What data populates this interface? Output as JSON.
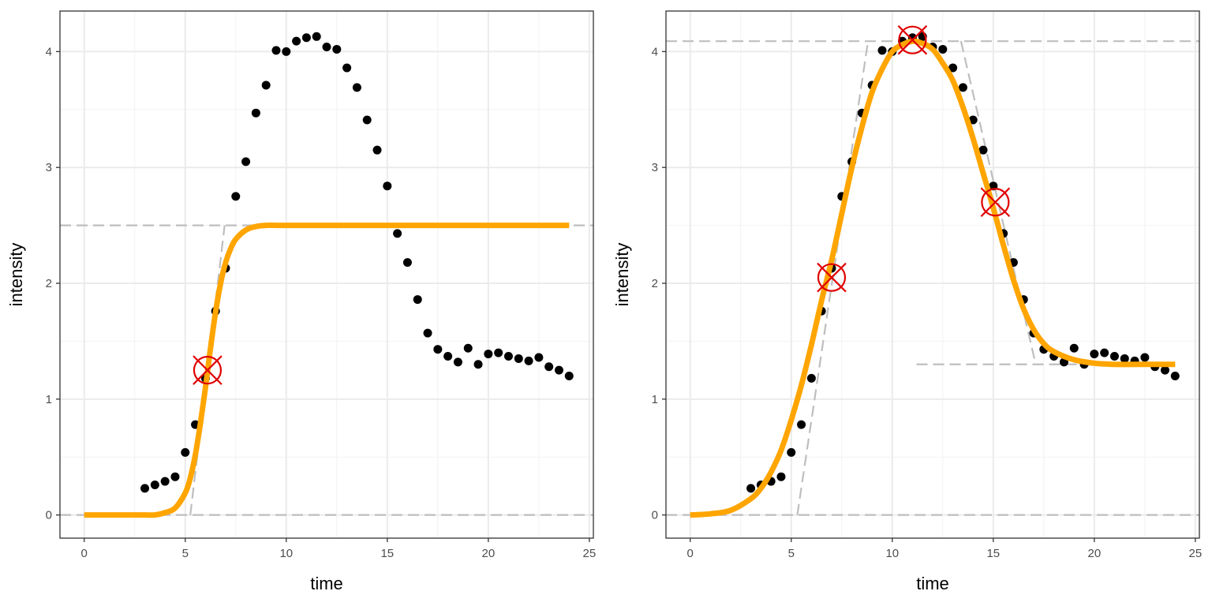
{
  "chart_data": [
    {
      "type": "scatter",
      "panel": "left",
      "xlabel": "time",
      "ylabel": "intensity",
      "xlim": [
        -1.2,
        25.2
      ],
      "ylim": [
        -0.2,
        4.35
      ],
      "xticks": [
        0,
        5,
        10,
        15,
        20,
        25
      ],
      "yticks": [
        0,
        1,
        2,
        3,
        4
      ],
      "grid": true,
      "points": {
        "x": [
          3,
          3.5,
          4,
          4.5,
          5,
          5.5,
          6,
          6.5,
          7,
          7.5,
          8,
          8.5,
          9,
          9.5,
          10,
          10.5,
          11,
          11.5,
          12,
          12.5,
          13,
          13.5,
          14,
          14.5,
          15,
          15.5,
          16,
          16.5,
          17,
          17.5,
          18,
          18.5,
          19,
          19.5,
          20,
          20.5,
          21,
          21.5,
          22,
          22.5,
          23,
          23.5,
          24
        ],
        "y": [
          0.23,
          0.26,
          0.29,
          0.33,
          0.54,
          0.78,
          1.18,
          1.76,
          2.13,
          2.75,
          3.05,
          3.47,
          3.71,
          4.01,
          4.0,
          4.09,
          4.12,
          4.13,
          4.04,
          4.02,
          3.86,
          3.69,
          3.41,
          3.15,
          2.84,
          2.43,
          2.18,
          1.86,
          1.57,
          1.43,
          1.37,
          1.32,
          1.44,
          1.3,
          1.39,
          1.4,
          1.37,
          1.35,
          1.33,
          1.36,
          1.28,
          1.25,
          1.2
        ]
      },
      "fit_curve": {
        "name": "sigmoid fit",
        "color": "#ffa500",
        "x": [
          0,
          0.5,
          1,
          1.5,
          2,
          2.5,
          3,
          3.5,
          4,
          4.5,
          5,
          5.25,
          5.5,
          5.75,
          6,
          6.25,
          6.5,
          6.75,
          7,
          7.25,
          7.5,
          8,
          8.5,
          9,
          9.5,
          10,
          11,
          12,
          14,
          16,
          18,
          20,
          22,
          24
        ],
        "y": [
          0.0,
          0.0,
          0.0,
          0.0,
          0.0,
          0.0,
          0.0,
          0.0,
          0.02,
          0.06,
          0.19,
          0.32,
          0.52,
          0.79,
          1.1,
          1.44,
          1.75,
          2.0,
          2.18,
          2.3,
          2.38,
          2.46,
          2.49,
          2.5,
          2.5,
          2.5,
          2.5,
          2.5,
          2.5,
          2.5,
          2.5,
          2.5,
          2.5,
          2.5
        ]
      },
      "reference_lines": [
        {
          "kind": "horizontal",
          "y": 0,
          "color": "#bebebe"
        },
        {
          "kind": "horizontal",
          "y": 2.5,
          "color": "#bebebe"
        },
        {
          "kind": "segment",
          "x": [
            5.25,
            6.95
          ],
          "y": [
            0,
            2.5
          ],
          "color": "#bebebe"
        }
      ],
      "markers": [
        {
          "name": "inflection point",
          "x": 6.1,
          "y": 1.25,
          "color": "#e00000"
        }
      ]
    },
    {
      "type": "scatter",
      "panel": "right",
      "xlabel": "time",
      "ylabel": "intensity",
      "xlim": [
        -1.2,
        25.2
      ],
      "ylim": [
        -0.2,
        4.35
      ],
      "xticks": [
        0,
        5,
        10,
        15,
        20,
        25
      ],
      "yticks": [
        0,
        1,
        2,
        3,
        4
      ],
      "grid": true,
      "points": {
        "x": [
          3,
          3.5,
          4,
          4.5,
          5,
          5.5,
          6,
          6.5,
          7,
          7.5,
          8,
          8.5,
          9,
          9.5,
          10,
          10.5,
          11,
          11.5,
          12,
          12.5,
          13,
          13.5,
          14,
          14.5,
          15,
          15.5,
          16,
          16.5,
          17,
          17.5,
          18,
          18.5,
          19,
          19.5,
          20,
          20.5,
          21,
          21.5,
          22,
          22.5,
          23,
          23.5,
          24
        ],
        "y": [
          0.23,
          0.26,
          0.29,
          0.33,
          0.54,
          0.78,
          1.18,
          1.76,
          2.13,
          2.75,
          3.05,
          3.47,
          3.71,
          4.01,
          4.0,
          4.09,
          4.12,
          4.13,
          4.04,
          4.02,
          3.86,
          3.69,
          3.41,
          3.15,
          2.84,
          2.43,
          2.18,
          1.86,
          1.57,
          1.43,
          1.37,
          1.32,
          1.44,
          1.3,
          1.39,
          1.4,
          1.37,
          1.35,
          1.33,
          1.36,
          1.28,
          1.25,
          1.2
        ]
      },
      "fit_curve": {
        "name": "double sigmoid fit",
        "color": "#ffa500",
        "x": [
          0,
          1,
          2,
          3,
          3.5,
          4,
          4.5,
          5,
          5.5,
          6,
          6.5,
          7,
          7.5,
          8,
          8.5,
          9,
          9.5,
          10,
          10.5,
          11,
          11.5,
          12,
          12.5,
          13,
          13.5,
          14,
          14.5,
          15,
          15.5,
          16,
          16.5,
          17,
          17.5,
          18,
          19,
          20,
          21,
          22,
          23,
          24
        ],
        "y": [
          0.0,
          0.01,
          0.04,
          0.14,
          0.23,
          0.37,
          0.56,
          0.82,
          1.12,
          1.47,
          1.85,
          2.2,
          2.6,
          3.0,
          3.35,
          3.65,
          3.85,
          4.0,
          4.06,
          4.09,
          4.07,
          4.02,
          3.9,
          3.75,
          3.52,
          3.25,
          2.95,
          2.65,
          2.33,
          2.03,
          1.78,
          1.6,
          1.48,
          1.41,
          1.34,
          1.31,
          1.3,
          1.3,
          1.3,
          1.3
        ]
      },
      "reference_lines": [
        {
          "kind": "horizontal",
          "y": 0,
          "color": "#bebebe"
        },
        {
          "kind": "horizontal",
          "y": 4.09,
          "color": "#bebebe"
        },
        {
          "kind": "segment",
          "x": [
            5.3,
            8.8
          ],
          "y": [
            0,
            4.09
          ],
          "color": "#bebebe"
        },
        {
          "kind": "segment",
          "x": [
            13.4,
            17.1
          ],
          "y": [
            4.09,
            1.3
          ],
          "color": "#bebebe"
        },
        {
          "kind": "segment",
          "x": [
            11.2,
            24
          ],
          "y": [
            1.3,
            1.3
          ],
          "color": "#bebebe"
        }
      ],
      "markers": [
        {
          "name": "midpoint 1",
          "x": 7.0,
          "y": 2.05,
          "color": "#e00000"
        },
        {
          "name": "maximum",
          "x": 11.0,
          "y": 4.1,
          "color": "#e00000"
        },
        {
          "name": "midpoint 2",
          "x": 15.1,
          "y": 2.7,
          "color": "#e00000"
        }
      ]
    }
  ]
}
